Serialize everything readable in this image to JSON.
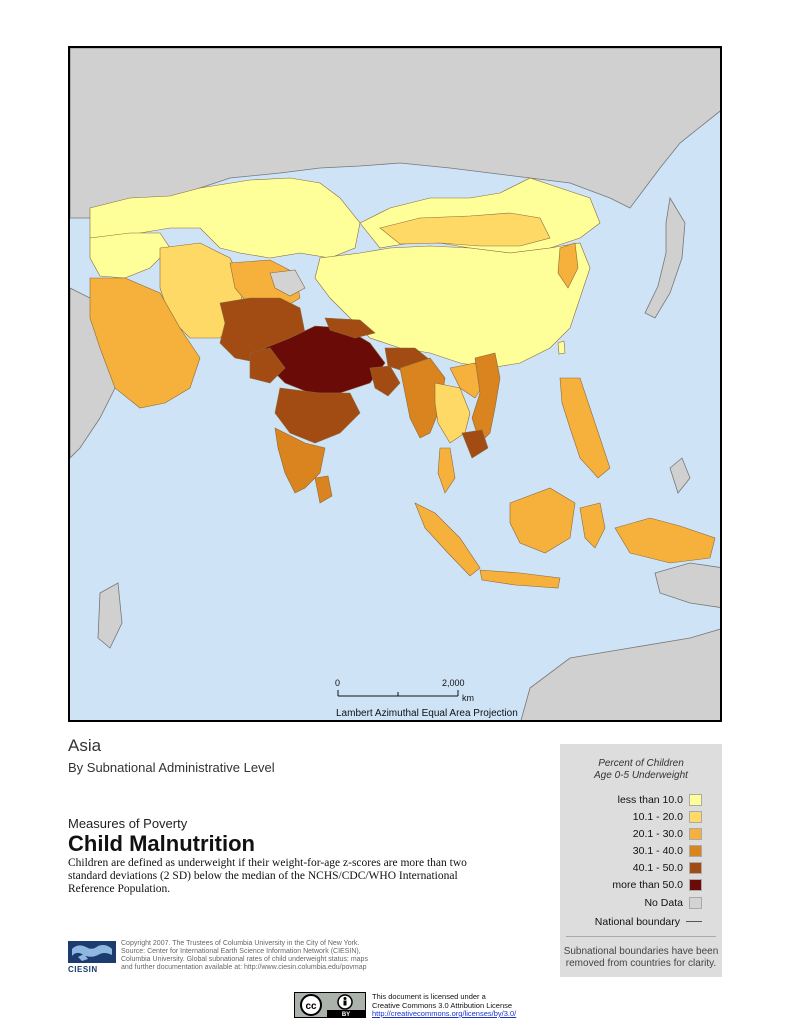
{
  "map": {
    "scale_bar": {
      "start": "0",
      "end": "2,000",
      "unit": "km"
    },
    "projection": "Lambert Azimuthal Equal Area Projection"
  },
  "header": {
    "region": "Asia",
    "level": "By Subnational Administrative Level",
    "series": "Measures of Poverty",
    "title": "Child Malnutrition",
    "description": "Children are defined as underweight if their weight-for-age z-scores are more than two standard deviations (2 SD) below the median of the NCHS/CDC/WHO International Reference Population."
  },
  "legend": {
    "title_line1": "Percent of Children",
    "title_line2": "Age 0-5 Underweight",
    "classes": [
      {
        "label": "less than 10.0",
        "color": "#ffff99"
      },
      {
        "label": "10.1 - 20.0",
        "color": "#fed966"
      },
      {
        "label": "20.1 - 30.0",
        "color": "#f6b13c"
      },
      {
        "label": "30.1 - 40.0",
        "color": "#d9841f"
      },
      {
        "label": "40.1 - 50.0",
        "color": "#a24b12"
      },
      {
        "label": "more than 50.0",
        "color": "#6a0b07"
      }
    ],
    "no_data": {
      "label": "No Data",
      "color": "#d3d3d3"
    },
    "boundary": {
      "label": "National boundary"
    },
    "note": "Subnational boundaries have been removed from countries for clarity."
  },
  "footer": {
    "logo_text": "CIESIN",
    "copyright_lines": [
      "Copyright 2007. The Trustees of Columbia University in the City of New York.",
      "Source: Center for International Earth Science Information Network (CIESIN),",
      "Columbia University. Global subnational rates of child underweight status: maps",
      "and further documentation available at: http://www.ciesin.columbia.edu/povmap"
    ],
    "license_line1": "This document is licensed under a",
    "license_line2": "Creative Commons 3.0 Attribution License",
    "license_url": "http://creativecommons.org/licenses/by/3.0/",
    "cc_icon_text": "cc",
    "by_text": "BY"
  }
}
